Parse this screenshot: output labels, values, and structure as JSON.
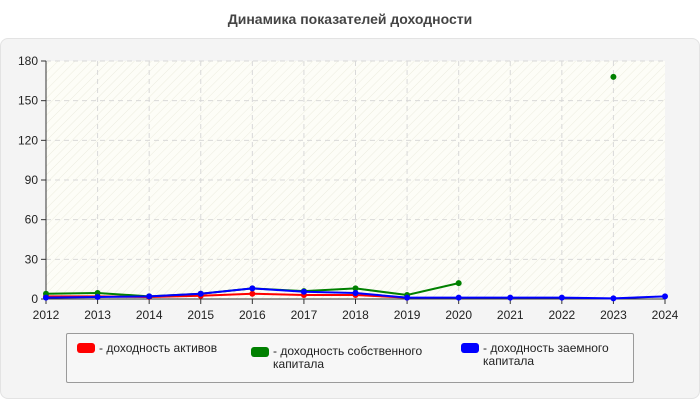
{
  "chart_data": {
    "type": "line",
    "title": "Динамика показателей доходности",
    "xlabel": "",
    "ylabel": "",
    "x": [
      "2012",
      "2013",
      "2014",
      "2015",
      "2016",
      "2017",
      "2018",
      "2019",
      "2020",
      "2021",
      "2022",
      "2023",
      "2024"
    ],
    "ylim": [
      0,
      180
    ],
    "yticks": [
      0,
      30,
      60,
      90,
      120,
      150,
      180
    ],
    "grid": true,
    "legend_position": "bottom",
    "series": [
      {
        "name": "- доходность активов",
        "color": "#ff0000",
        "values": [
          2,
          2,
          1.5,
          2.5,
          4,
          3,
          3,
          1,
          null,
          null,
          null,
          null,
          null
        ]
      },
      {
        "name": "- доходность собственного капитала",
        "color": "#008000",
        "values": [
          4,
          4.5,
          2,
          4,
          8,
          6,
          8,
          3,
          12,
          null,
          null,
          168,
          null
        ]
      },
      {
        "name": "- доходность заемного капитала",
        "color": "#0000ff",
        "values": [
          1,
          1.5,
          2,
          4,
          8,
          5.5,
          4.5,
          1,
          1,
          1,
          1,
          0.5,
          2
        ]
      }
    ]
  }
}
